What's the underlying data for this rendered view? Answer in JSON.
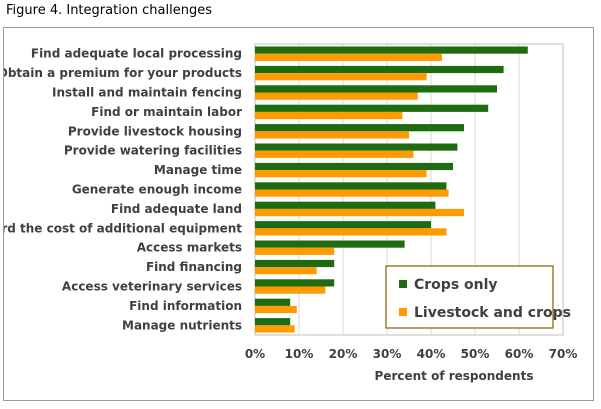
{
  "caption": "Figure 4. Integration challenges",
  "chart_data": {
    "type": "bar",
    "orientation": "horizontal",
    "categories": [
      "Find adequate local processing",
      "Obtain a premium for your products",
      "Install and maintain fencing",
      "Find or maintain labor",
      "Provide livestock housing",
      "Provide watering facilities",
      "Manage time",
      "Generate enough income",
      "Find adequate land",
      "Afford the cost of additional equipment",
      "Access markets",
      "Find financing",
      "Access veterinary services",
      "Find information",
      "Manage nutrients"
    ],
    "series": [
      {
        "name": "Crops only",
        "color": "#1e6b10",
        "values": [
          62,
          56.5,
          55,
          53,
          47.5,
          46,
          45,
          43.5,
          41,
          40,
          34,
          18,
          18,
          8,
          8
        ]
      },
      {
        "name": "Livestock and crops",
        "color": "#ff9a00",
        "values": [
          42.5,
          39,
          37,
          33.5,
          35,
          36,
          39,
          44,
          47.5,
          43.5,
          18,
          14,
          16,
          9.5,
          9
        ]
      }
    ],
    "xlabel": "Percent of respondents",
    "ylabel": "",
    "xlim": [
      0,
      70
    ],
    "xticks": [
      0,
      10,
      20,
      30,
      40,
      50,
      60,
      70
    ],
    "tick_suffix": "%",
    "grid": true,
    "legend_position": "bottom-right"
  }
}
